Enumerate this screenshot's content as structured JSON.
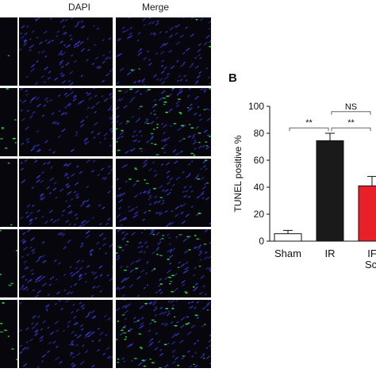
{
  "figure": {
    "column_headers": [
      "DAPI",
      "Merge"
    ],
    "panel_b_letter": "B"
  },
  "micrographs": {
    "rows": [
      {
        "green_level": 0.05
      },
      {
        "green_level": 0.55
      },
      {
        "green_level": 0.15
      },
      {
        "green_level": 0.35
      },
      {
        "green_level": 0.45
      }
    ],
    "colors": {
      "nuclei": "#3a3ad0",
      "tunel": "#2ee04a",
      "background": "#06060c"
    }
  },
  "chart_data": {
    "type": "bar",
    "categories": [
      [
        "Sham"
      ],
      [
        "IR"
      ],
      [
        "IF",
        "Scl"
      ]
    ],
    "values": [
      5.5,
      74.5,
      41
    ],
    "errors": [
      2.5,
      5.5,
      7
    ],
    "bar_colors": [
      "#ffffff",
      "#1a1a1a",
      "#e8202a"
    ],
    "ylabel": "TUNEL positive %",
    "ylim": [
      0,
      100
    ],
    "yticks": [
      0,
      20,
      40,
      60,
      80,
      100
    ],
    "grid": false,
    "annotations": [
      {
        "from": 0,
        "to": 1,
        "y": 84,
        "label": "**"
      },
      {
        "from": 1,
        "to": 2,
        "y": 84,
        "label": "**"
      },
      {
        "from": 1,
        "to": 2,
        "y": 96,
        "label": "NS"
      }
    ]
  }
}
